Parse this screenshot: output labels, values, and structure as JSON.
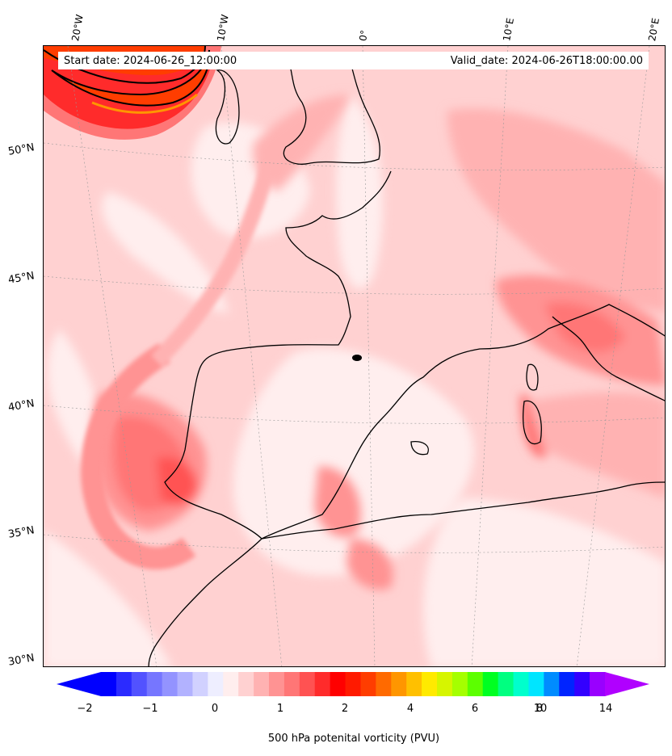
{
  "header": {
    "start_date": "Start date: 2024-06-26_12:00:00",
    "valid_date": "Valid_date: 2024-06-26T18:00:00.00"
  },
  "longitude_labels": [
    "20°W",
    "10°W",
    "0°",
    "10°E",
    "20°E"
  ],
  "latitude_labels": [
    "50°N",
    "45°N",
    "40°N",
    "35°N",
    "30°N"
  ],
  "colorbar": {
    "label": "500 hPa potenital vorticity (PVU)",
    "tick_labels": [
      "−2",
      "−1",
      "0",
      "1",
      "2",
      "4",
      "6",
      "8",
      "10",
      "14"
    ],
    "colors": [
      "#0000ff",
      "#2b2bff",
      "#5252ff",
      "#7676ff",
      "#9393ff",
      "#b2b2ff",
      "#d1d1ff",
      "#eeeeff",
      "#ffeeee",
      "#ffd1d1",
      "#ffb2b2",
      "#ff9393",
      "#ff7676",
      "#ff5252",
      "#ff2b2b",
      "#ff0000",
      "#ff1a00",
      "#ff3d00",
      "#ff6a00",
      "#ff9600",
      "#ffc000",
      "#ffea00",
      "#d6f500",
      "#a5ff00",
      "#5cff00",
      "#00ff21",
      "#00ff80",
      "#00ffcc",
      "#00e5ff",
      "#008cff",
      "#0024ff",
      "#3300ff",
      "#9900ff"
    ],
    "extend_min_color": "#0000ff",
    "extend_max_color": "#b000ff"
  },
  "colors": {
    "background_pv": "#ffd1d1",
    "land_line": "#000000"
  }
}
